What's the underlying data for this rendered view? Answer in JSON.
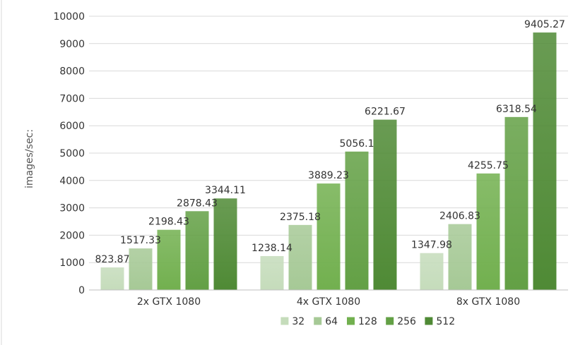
{
  "chart_data": {
    "type": "bar",
    "title": "",
    "xlabel": "",
    "ylabel": "images/sec:",
    "ylim": [
      0,
      10000
    ],
    "yticks": [
      0,
      1000,
      2000,
      3000,
      4000,
      5000,
      6000,
      7000,
      8000,
      9000,
      10000
    ],
    "grid": true,
    "legend_position": "bottom",
    "categories": [
      "2x GTX 1080",
      "4x GTX 1080",
      "8x GTX 1080"
    ],
    "series": [
      {
        "name": "32",
        "color": "#c5dcbb",
        "values": [
          823.87,
          1238.14,
          1347.98
        ],
        "labels": [
          "823.87",
          "1238.14",
          "1347.98"
        ]
      },
      {
        "name": "64",
        "color": "#a6c996",
        "values": [
          1517.33,
          2375.18,
          2406.83
        ],
        "labels": [
          "1517.33",
          "2375.18",
          "2406.83"
        ]
      },
      {
        "name": "128",
        "color": "#72b04f",
        "values": [
          2198.43,
          3889.23,
          4255.75
        ],
        "labels": [
          "2198.43",
          "3889.23",
          "4255.75"
        ]
      },
      {
        "name": "256",
        "color": "#63a045",
        "values": [
          2878.43,
          5056.1,
          6318.54
        ],
        "labels": [
          "2878.43",
          "5056.1",
          "6318.54"
        ]
      },
      {
        "name": "512",
        "color": "#4f8a35",
        "values": [
          3344.11,
          6221.67,
          9405.27
        ],
        "labels": [
          "3344.11",
          "6221.67",
          "9405.27"
        ]
      }
    ]
  }
}
